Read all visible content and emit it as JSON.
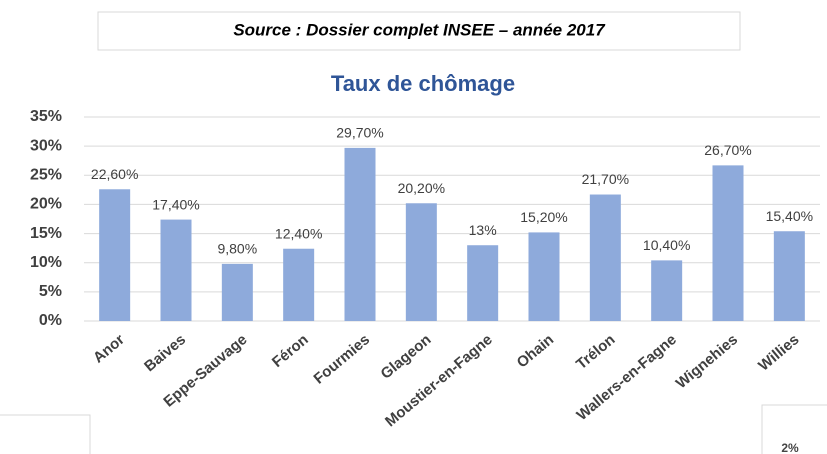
{
  "source": "Source : Dossier complet INSEE – année 2017",
  "fragment": "2%",
  "chart_data": {
    "type": "bar",
    "title": "Taux de chômage",
    "categories": [
      "Anor",
      "Baives",
      "Eppe-Sauvage",
      "Féron",
      "Fourmies",
      "Glageon",
      "Moustier-en-Fagne",
      "Ohain",
      "Trélon",
      "Wallers-en-Fagne",
      "Wignehies",
      "Willies"
    ],
    "values": [
      22.6,
      17.4,
      9.8,
      12.4,
      29.7,
      20.2,
      13,
      15.2,
      21.7,
      10.4,
      26.7,
      15.4
    ],
    "value_labels": [
      "22,60%",
      "17,40%",
      "9,80%",
      "12,40%",
      "29,70%",
      "20,20%",
      "13%",
      "15,20%",
      "21,70%",
      "10,40%",
      "26,70%",
      "15,40%"
    ],
    "color": "#8eaadb",
    "ylim": [
      0,
      35
    ],
    "yticks": [
      {
        "value": 0,
        "label": "0%"
      },
      {
        "value": 5,
        "label": "5%"
      },
      {
        "value": 10,
        "label": "10%"
      },
      {
        "value": 15,
        "label": "15%"
      },
      {
        "value": 20,
        "label": "20%"
      },
      {
        "value": 25,
        "label": "25%"
      },
      {
        "value": 30,
        "label": "30%"
      },
      {
        "value": 35,
        "label": "35%"
      }
    ],
    "grid": true
  }
}
